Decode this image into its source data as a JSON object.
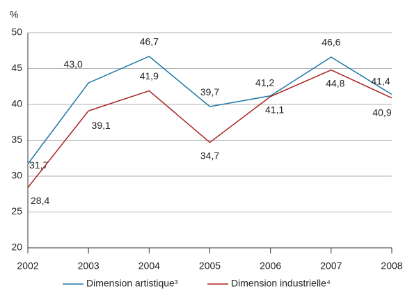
{
  "chart_data": {
    "type": "line",
    "y_label": "%",
    "x": [
      2002,
      2003,
      2004,
      2005,
      2006,
      2007,
      2008
    ],
    "xlim": [
      2002,
      2008
    ],
    "xticks": [
      2002,
      2003,
      2004,
      2005,
      2006,
      2007,
      2008
    ],
    "ylim": [
      20,
      50
    ],
    "yticks": [
      20,
      25,
      30,
      35,
      40,
      45,
      50
    ],
    "grid": true,
    "series": [
      {
        "name": "Dimension artistique³",
        "color": "#1b78a6",
        "values": [
          31.7,
          43.0,
          46.7,
          39.7,
          41.2,
          46.6,
          41.4
        ],
        "value_labels": [
          "31,7",
          "43,0",
          "46,7",
          "39,7",
          "41,2",
          "46,6",
          "41,4"
        ]
      },
      {
        "name": "Dimension industrielle⁴",
        "color": "#a8201f",
        "values": [
          28.4,
          39.1,
          41.9,
          34.7,
          41.1,
          44.8,
          40.9
        ],
        "value_labels": [
          "28,4",
          "39,1",
          "41,9",
          "34,7",
          "41,1",
          "44,8",
          "40,9"
        ]
      }
    ]
  }
}
